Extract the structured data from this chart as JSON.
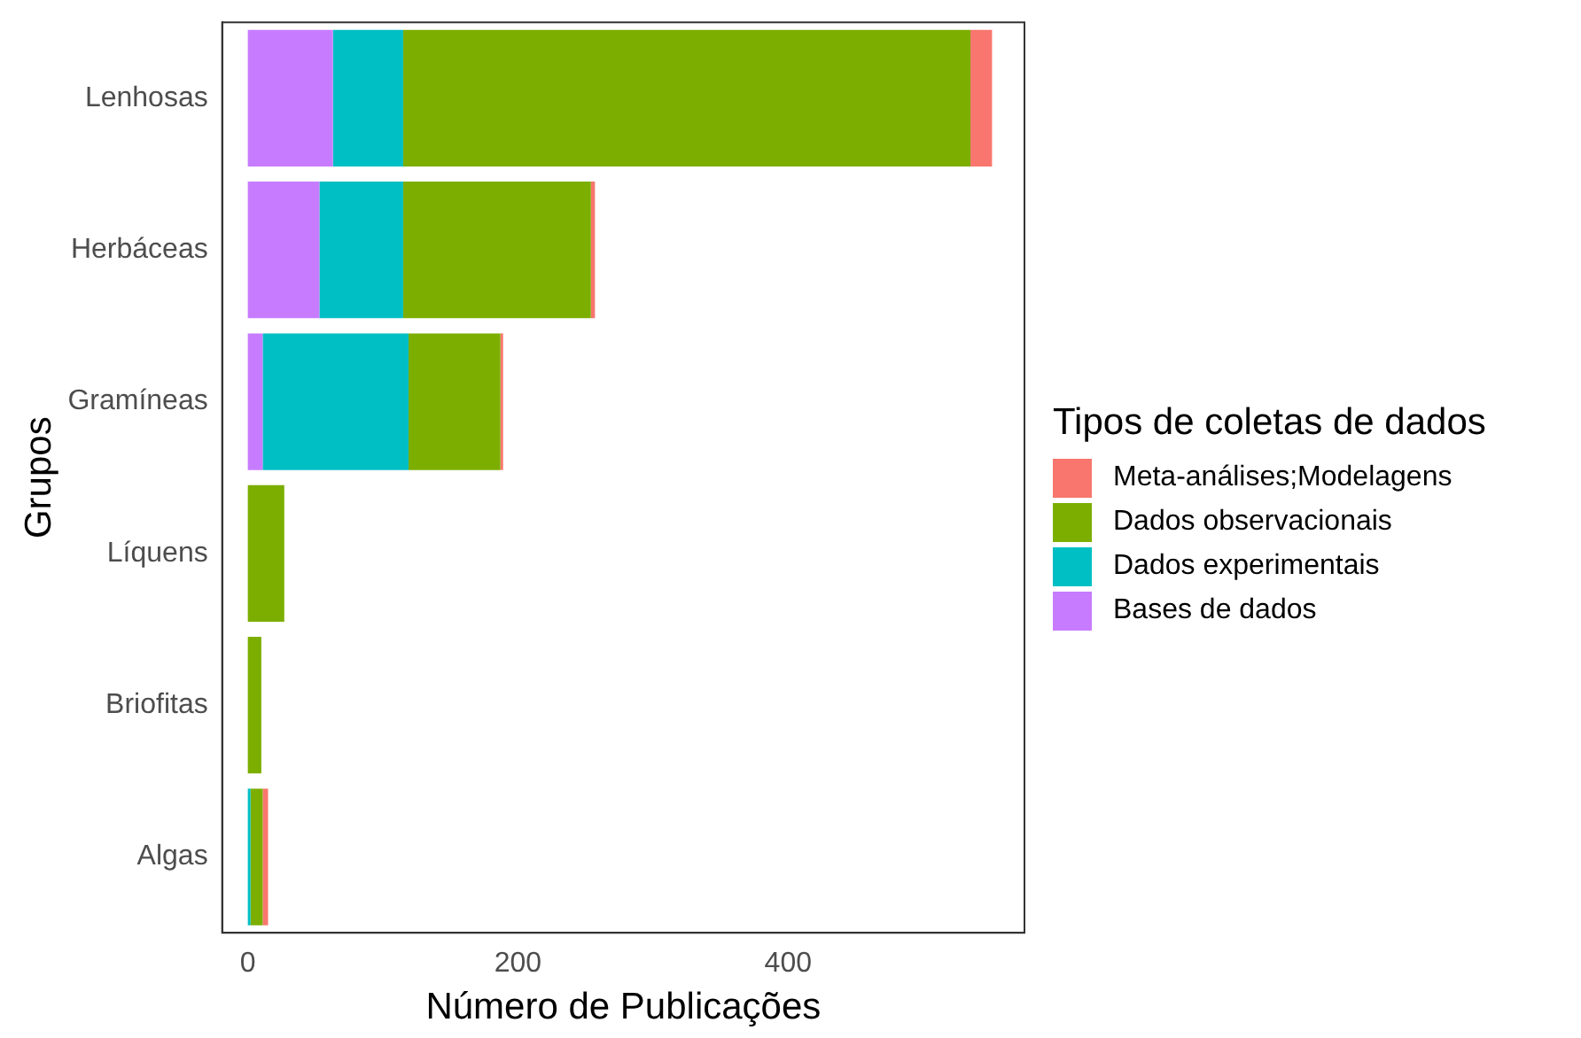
{
  "chart_data": {
    "type": "bar",
    "orientation": "horizontal",
    "stacked": true,
    "xlabel": "Número de Publicações",
    "ylabel": "Grupos",
    "legend_title": "Tipos de coletas de dados",
    "legend": "right",
    "grid": false,
    "categories": [
      "Lenhosas",
      "Herbáceas",
      "Gramíneas",
      "Líquens",
      "Briofitas",
      "Algas"
    ],
    "xlim": [
      -19,
      575
    ],
    "xticks": [
      0,
      200,
      400
    ],
    "series": [
      {
        "name": "Bases de dados",
        "color": "#c77cff",
        "values": [
          63,
          53,
          11,
          0,
          0,
          0
        ]
      },
      {
        "name": "Dados experimentais",
        "color": "#00bfc4",
        "values": [
          52,
          62,
          108,
          0,
          0,
          2
        ]
      },
      {
        "name": "Dados observacionais",
        "color": "#7cae00",
        "values": [
          420,
          139,
          68,
          27,
          10,
          9
        ]
      },
      {
        "name": "Meta-análises;Modelagens",
        "color": "#f8766d",
        "values": [
          16,
          3,
          2,
          0,
          0,
          4
        ]
      }
    ]
  }
}
